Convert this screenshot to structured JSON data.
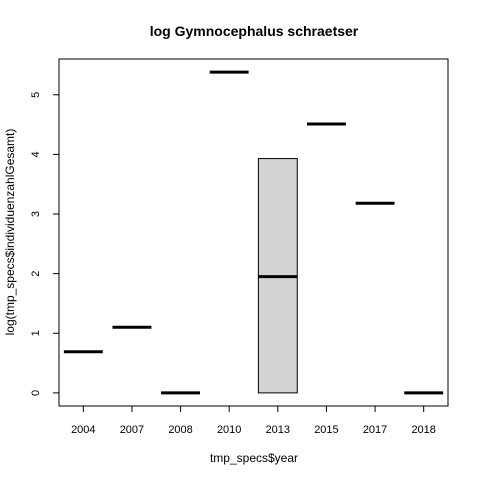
{
  "chart_data": {
    "type": "boxplot",
    "title": "log Gymnocephalus schraetser",
    "xlabel": "tmp_specs$year",
    "ylabel": "log(tmp_specs$individuenzahlGesamt)",
    "categories": [
      "2004",
      "2007",
      "2008",
      "2010",
      "2013",
      "2015",
      "2017",
      "2018"
    ],
    "boxes": [
      {
        "category": "2004",
        "min": 0.69,
        "q1": 0.69,
        "median": 0.69,
        "q3": 0.69,
        "max": 0.69
      },
      {
        "category": "2007",
        "min": 1.1,
        "q1": 1.1,
        "median": 1.1,
        "q3": 1.1,
        "max": 1.1
      },
      {
        "category": "2008",
        "min": 0.0,
        "q1": 0.0,
        "median": 0.0,
        "q3": 0.0,
        "max": 0.0
      },
      {
        "category": "2010",
        "min": 5.38,
        "q1": 5.38,
        "median": 5.38,
        "q3": 5.38,
        "max": 5.38
      },
      {
        "category": "2013",
        "min": 0.0,
        "q1": 0.0,
        "median": 1.95,
        "q3": 3.93,
        "max": 3.93
      },
      {
        "category": "2015",
        "min": 4.51,
        "q1": 4.51,
        "median": 4.51,
        "q3": 4.51,
        "max": 4.51
      },
      {
        "category": "2017",
        "min": 3.18,
        "q1": 3.18,
        "median": 3.18,
        "q3": 3.18,
        "max": 3.18
      },
      {
        "category": "2018",
        "min": 0.0,
        "q1": 0.0,
        "median": 0.0,
        "q3": 0.0,
        "max": 0.0
      }
    ],
    "yticks": [
      0,
      1,
      2,
      3,
      4,
      5
    ],
    "ylim": [
      -0.22,
      5.6
    ],
    "box_fill": "#d3d3d3",
    "grid": false
  }
}
